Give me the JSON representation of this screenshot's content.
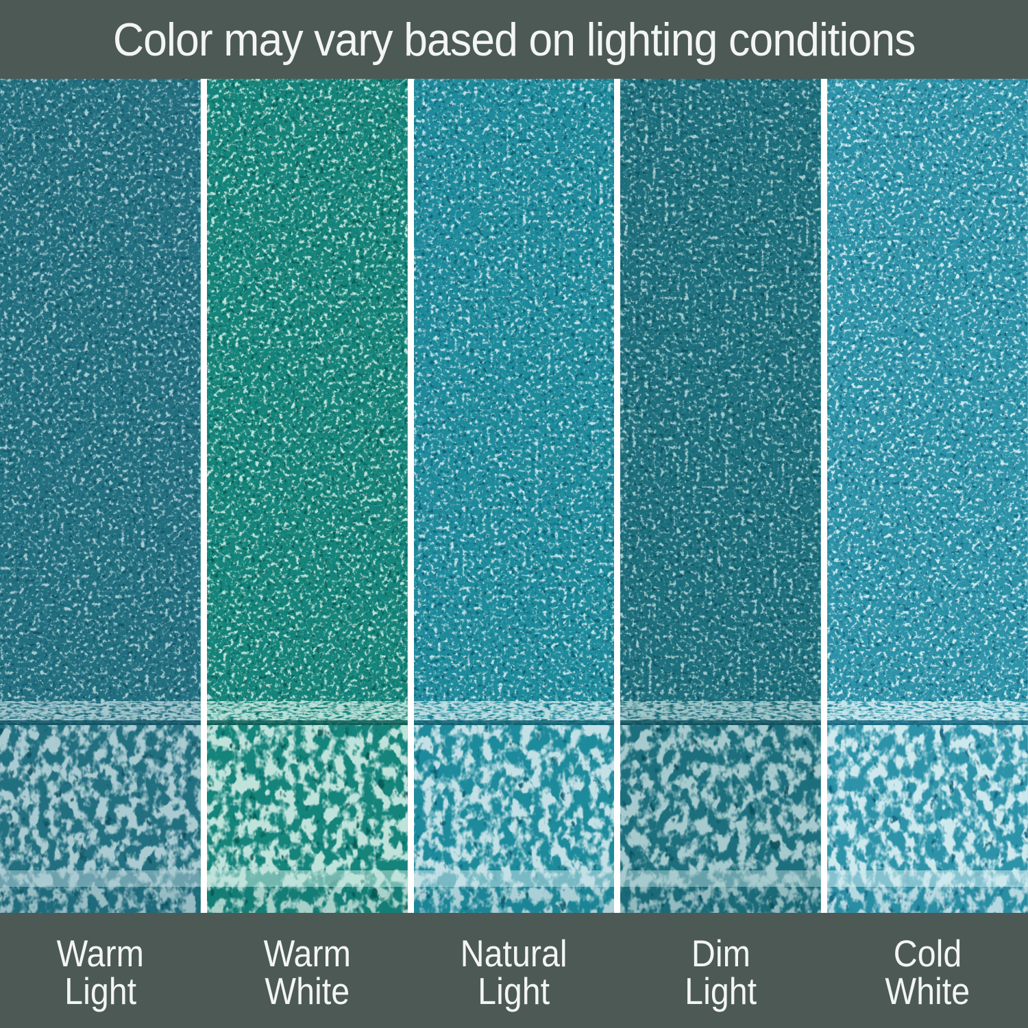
{
  "header": {
    "title": "Color may vary based on lighting conditions"
  },
  "colors": {
    "banner_bg": "#4d5955",
    "banner_text": "#f3f5f4",
    "divider": "#ffffff"
  },
  "panels": [
    {
      "id": "warm-light",
      "label_line1": "Warm",
      "label_line2": "Light",
      "base": "#226f80",
      "light": "#aacbd1",
      "dark": "#0d4f60"
    },
    {
      "id": "warm-white",
      "label_line1": "Warm",
      "label_line2": "White",
      "base": "#15847b",
      "light": "#bfe3da",
      "dark": "#07564f"
    },
    {
      "id": "natural-light",
      "label_line1": "Natural",
      "label_line2": "Light",
      "base": "#1e8b9c",
      "light": "#c2e0e5",
      "dark": "#0a5a6c"
    },
    {
      "id": "dim-light",
      "label_line1": "Dim",
      "label_line2": "Light",
      "base": "#1d6f7d",
      "light": "#a6cacd",
      "dark": "#0c4c59"
    },
    {
      "id": "cold-white",
      "label_line1": "Cold",
      "label_line2": "White",
      "base": "#2d93a9",
      "light": "#cde9ee",
      "dark": "#11617a"
    }
  ]
}
